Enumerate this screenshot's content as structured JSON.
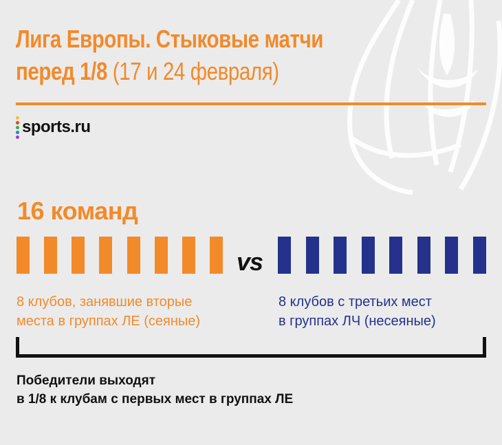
{
  "title": {
    "bold_part": "Лига Европы. Стыковые матчи\nперед 1/8 ",
    "line1": "Лига Европы. Стыковые матчи",
    "line2_bold": "перед 1/8",
    "line2_light": "(17 и 24 февраля)"
  },
  "logo": {
    "text": "sports.ru",
    "dot_colors": [
      "#f2c12e",
      "#e8412c",
      "#2db34a",
      "#2a7fd9",
      "#9b3fc6"
    ]
  },
  "teams_count": "16 команд",
  "vs_label": "vs",
  "seeded": {
    "count": 8,
    "color": "#f28a2a",
    "description": "8 клубов, занявшие вторые\nместа в группах ЛЕ (сеяные)"
  },
  "unseeded": {
    "count": 8,
    "color": "#24328c",
    "description": "8 клубов с третьих мест\nв группах ЛЧ (несеяные)"
  },
  "footer": "Победители выходят\nв 1/8 к клубам с первых мест в группах ЛЕ",
  "colors": {
    "accent": "#f28a2a",
    "navy": "#24328c",
    "background": "#ebebeb"
  }
}
